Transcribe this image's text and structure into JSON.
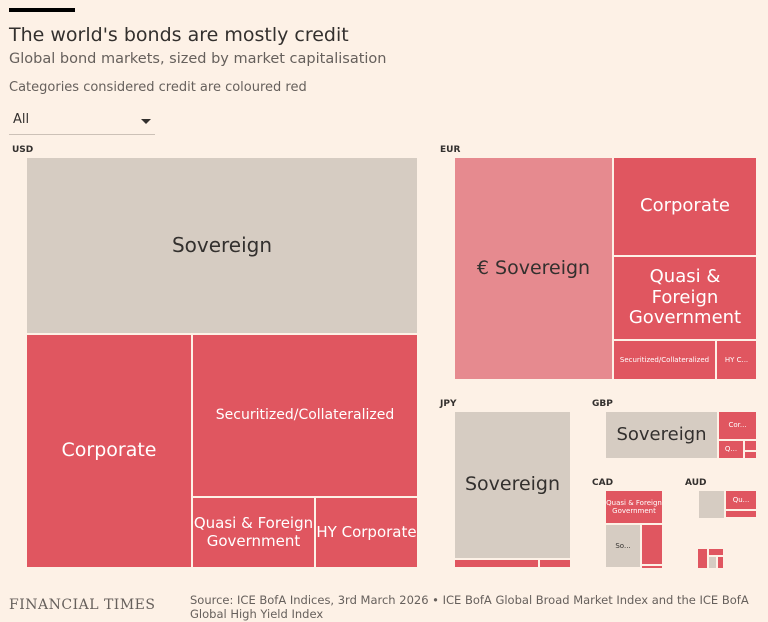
{
  "header": {
    "title": "The world's bonds are mostly credit",
    "subtitle": "Global bond markets, sized by market capitalisation",
    "note": "Categories considered credit are coloured red"
  },
  "filter": {
    "selected": "All"
  },
  "footer": {
    "brand": "FINANCIAL TIMES",
    "source": "Source: ICE BofA Indices, 3rd March 2026 • ICE BofA Global Broad Market Index and the ICE BofA Global High Yield Index"
  },
  "colors": {
    "sovereign": "#d6ccc2",
    "credit": "#e05660",
    "euro_sovereign": "#e68a8f",
    "background": "#fdf1e6"
  },
  "chart_data": {
    "type": "treemap",
    "title": "The world's bonds are mostly credit",
    "subtitle": "Global bond markets, sized by market capitalisation",
    "approx_share_percent_by_currency": {
      "USD": 62,
      "EUR": 26,
      "JPY": 7,
      "GBP": 3,
      "CAD": 1.7,
      "AUD": 0.6
    },
    "groups": [
      {
        "name": "USD",
        "cells": [
          {
            "label": "Sovereign",
            "kind": "sovereign"
          },
          {
            "label": "Corporate",
            "kind": "credit"
          },
          {
            "label": "Securitized/Collateralized",
            "kind": "credit"
          },
          {
            "label": "Quasi & Foreign Government",
            "kind": "credit"
          },
          {
            "label": "HY Corporate",
            "kind": "credit"
          }
        ]
      },
      {
        "name": "EUR",
        "cells": [
          {
            "label": "€ Sovereign",
            "kind": "euro_sovereign"
          },
          {
            "label": "Corporate",
            "kind": "credit"
          },
          {
            "label": "Quasi & Foreign Government",
            "kind": "credit"
          },
          {
            "label": "Securitized/Collateralized",
            "kind": "credit"
          },
          {
            "label": "HY C...",
            "kind": "credit"
          }
        ]
      },
      {
        "name": "JPY",
        "cells": [
          {
            "label": "Sovereign",
            "kind": "sovereign"
          },
          {
            "label": "",
            "kind": "credit"
          },
          {
            "label": "",
            "kind": "credit"
          }
        ]
      },
      {
        "name": "GBP",
        "cells": [
          {
            "label": "Sovereign",
            "kind": "sovereign"
          },
          {
            "label": "Cor...",
            "kind": "credit"
          },
          {
            "label": "Q...",
            "kind": "credit"
          },
          {
            "label": "",
            "kind": "credit"
          },
          {
            "label": "",
            "kind": "credit"
          }
        ]
      },
      {
        "name": "CAD",
        "cells": [
          {
            "label": "Quasi & Foreign Government",
            "kind": "credit"
          },
          {
            "label": "So...",
            "kind": "sovereign"
          },
          {
            "label": "",
            "kind": "credit"
          },
          {
            "label": "",
            "kind": "credit"
          }
        ]
      },
      {
        "name": "AUD",
        "cells": [
          {
            "label": "",
            "kind": "sovereign"
          },
          {
            "label": "Qu...",
            "kind": "credit"
          },
          {
            "label": "",
            "kind": "credit"
          }
        ]
      },
      {
        "name": "",
        "cells": [
          {
            "label": "",
            "kind": "credit"
          },
          {
            "label": "",
            "kind": "credit"
          },
          {
            "label": "",
            "kind": "sovereign"
          },
          {
            "label": "",
            "kind": "credit"
          }
        ]
      }
    ]
  }
}
